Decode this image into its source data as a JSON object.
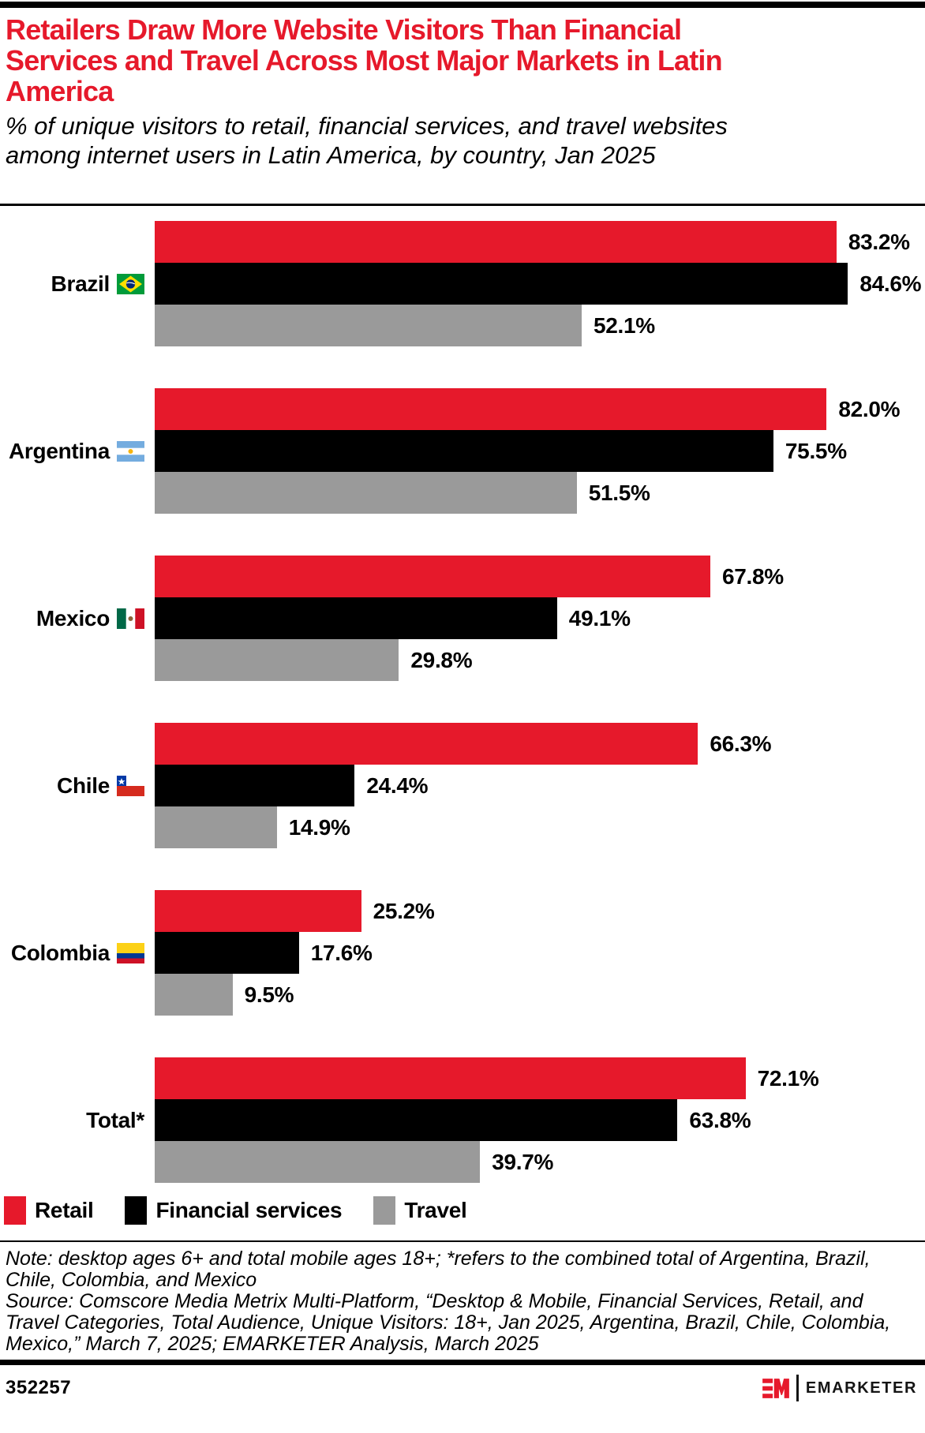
{
  "header": {
    "title": "Retailers Draw More Website Visitors Than Financial Services and Travel Across Most Major Markets in Latin America",
    "subtitle": "% of unique visitors to retail, financial services, and travel websites among internet users in Latin America, by country, Jan 2025"
  },
  "chart_data": {
    "type": "bar",
    "orientation": "horizontal",
    "title": "% of unique visitors to retail, financial services, and travel websites among internet users in Latin America, by country, Jan 2025",
    "categories": [
      "Brazil",
      "Argentina",
      "Mexico",
      "Chile",
      "Colombia",
      "Total*"
    ],
    "flags": [
      "brazil",
      "argentina",
      "mexico",
      "chile",
      "colombia",
      null
    ],
    "series": [
      {
        "name": "Retail",
        "color": "#e6192b",
        "values": [
          83.2,
          82.0,
          67.8,
          66.3,
          25.2,
          72.1
        ]
      },
      {
        "name": "Financial services",
        "color": "#000000",
        "values": [
          84.6,
          75.5,
          49.1,
          24.4,
          17.6,
          63.8
        ]
      },
      {
        "name": "Travel",
        "color": "#9a9a9a",
        "values": [
          52.1,
          51.5,
          29.8,
          14.9,
          9.5,
          39.7
        ]
      }
    ],
    "value_suffix": "%",
    "value_decimals": 1,
    "xlim": [
      0,
      94
    ],
    "grid": false,
    "legend_position": "bottom-left"
  },
  "footer": {
    "note": "Note: desktop ages 6+ and total mobile ages 18+; *refers to the combined total of Argentina, Brazil, Chile, Colombia, and Mexico",
    "source": "Source: Comscore Media Metrix Multi-Platform, “Desktop & Mobile, Financial Services, Retail, and Travel Categories, Total Audience, Unique Visitors: 18+, Jan 2025, Argentina, Brazil, Chile, Colombia, Mexico,” March 7, 2025; EMARKETER Analysis, March 2025",
    "chart_id": "352257",
    "brand": "EMARKETER"
  },
  "colors": {
    "accent_red": "#e6192b",
    "bar_black": "#000000",
    "bar_gray": "#9a9a9a"
  }
}
